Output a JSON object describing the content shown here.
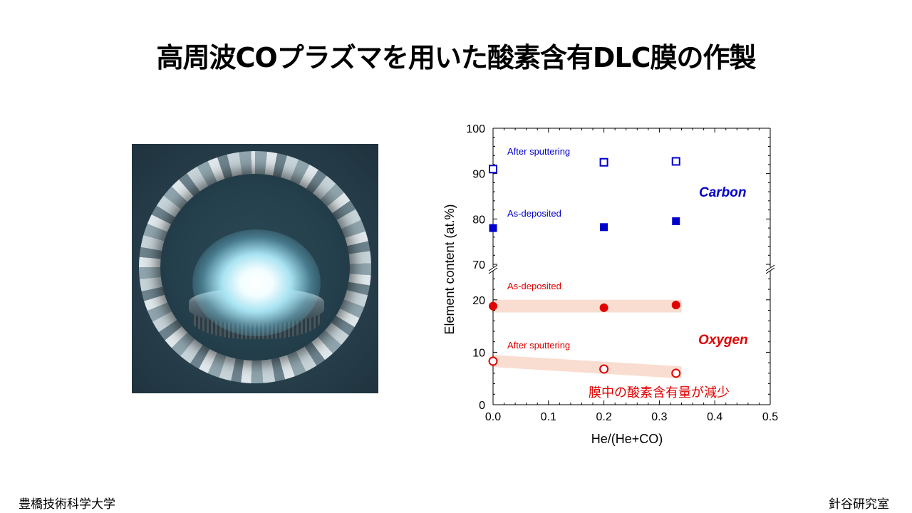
{
  "slide": {
    "title": "高周波COプラズマを用いた酸素含有DLC膜の作製",
    "footer_left": "豊橋技術科学大学",
    "footer_right": "針谷研究室",
    "photo_label": "plasma-chamber-photo"
  },
  "colors": {
    "carbon": "#0000cc",
    "oxygen": "#e00000",
    "band": "#f8ddd0"
  },
  "chart_data": {
    "type": "scatter",
    "xlabel": "He/(He+CO)",
    "ylabel": "Element content (at.%)",
    "xlim": [
      0.0,
      0.5
    ],
    "x_ticks": [
      "0.0",
      "0.1",
      "0.2",
      "0.3",
      "0.4",
      "0.5"
    ],
    "broken_y_axis": true,
    "y_ranges": {
      "upper": [
        70,
        100
      ],
      "lower": [
        0,
        25
      ]
    },
    "y_ticks_upper": [
      "70",
      "80",
      "90",
      "100"
    ],
    "y_ticks_lower": [
      "0",
      "10",
      "20"
    ],
    "series": [
      {
        "name": "After sputtering",
        "element": "Carbon",
        "marker": "open-square",
        "color": "#0000cc",
        "x": [
          0.0,
          0.2,
          0.33
        ],
        "y": [
          91.0,
          92.5,
          92.7
        ]
      },
      {
        "name": "As-deposited",
        "element": "Carbon",
        "marker": "filled-square",
        "color": "#0000cc",
        "x": [
          0.0,
          0.2,
          0.33
        ],
        "y": [
          78.0,
          78.2,
          79.5
        ]
      },
      {
        "name": "As-deposited",
        "element": "Oxygen",
        "marker": "filled-circle",
        "color": "#e00000",
        "x": [
          0.0,
          0.2,
          0.33
        ],
        "y": [
          18.8,
          18.5,
          19.0
        ]
      },
      {
        "name": "After sputtering",
        "element": "Oxygen",
        "marker": "open-circle",
        "color": "#e00000",
        "x": [
          0.0,
          0.2,
          0.33
        ],
        "y": [
          8.3,
          6.8,
          6.0
        ]
      }
    ],
    "group_labels": {
      "carbon": "Carbon",
      "oxygen": "Oxygen"
    },
    "annotation": "膜中の酸素含有量が減少"
  }
}
